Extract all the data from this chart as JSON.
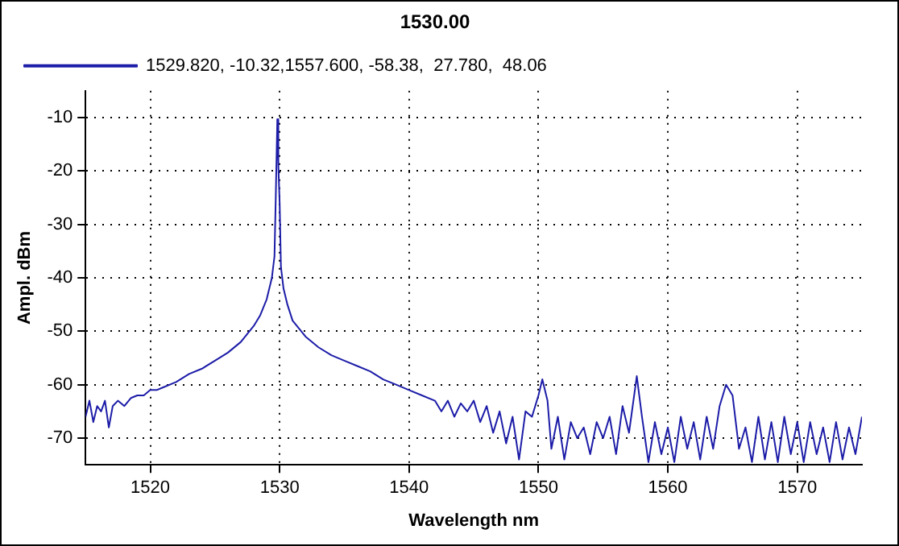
{
  "chart_data": {
    "type": "line",
    "title": "1530.00",
    "xlabel": "Wavelength nm",
    "ylabel": "Ampl. dBm",
    "x": [
      1515,
      1515.3,
      1515.6,
      1515.9,
      1516.2,
      1516.5,
      1516.8,
      1517.1,
      1517.5,
      1518,
      1518.5,
      1519,
      1519.5,
      1520,
      1520.5,
      1521,
      1522,
      1523,
      1524,
      1525,
      1526,
      1527,
      1528,
      1528.5,
      1529,
      1529.4,
      1529.6,
      1529.7,
      1529.82,
      1529.9,
      1530,
      1530.1,
      1530.3,
      1530.6,
      1531,
      1532,
      1533,
      1534,
      1535,
      1536,
      1537,
      1538,
      1539,
      1540,
      1541,
      1542,
      1542.5,
      1543,
      1543.5,
      1544,
      1544.5,
      1545,
      1545.5,
      1546,
      1546.5,
      1547,
      1547.5,
      1548,
      1548.5,
      1549,
      1549.5,
      1550,
      1550.3,
      1550.7,
      1551,
      1551.5,
      1552,
      1552.5,
      1553,
      1553.5,
      1554,
      1554.5,
      1555,
      1555.5,
      1556,
      1556.5,
      1557,
      1557.6,
      1558,
      1558.5,
      1559,
      1559.5,
      1560,
      1560.5,
      1561,
      1561.5,
      1562,
      1562.5,
      1563,
      1563.5,
      1564,
      1564.5,
      1565,
      1565.5,
      1566,
      1566.5,
      1567,
      1567.5,
      1568,
      1568.5,
      1569,
      1569.5,
      1570,
      1570.5,
      1571,
      1571.5,
      1572,
      1572.5,
      1573,
      1573.5,
      1574,
      1574.5,
      1575
    ],
    "series": [
      {
        "name": "1529.820, -10.32,1557.600, -58.38,  27.780,  48.06",
        "color": "#1c1ca8",
        "values": [
          -66,
          -63,
          -67,
          -64,
          -65,
          -63,
          -68,
          -64,
          -63,
          -64,
          -62.5,
          -62,
          -62,
          -61,
          -61,
          -60.5,
          -59.5,
          -58,
          -57,
          -55.5,
          -54,
          -52,
          -49,
          -47,
          -44,
          -40,
          -36,
          -25,
          -10.3,
          -19,
          -26,
          -38,
          -42,
          -45,
          -48,
          -51,
          -53,
          -54.5,
          -55.5,
          -56.5,
          -57.5,
          -59,
          -60,
          -61,
          -62,
          -63,
          -65,
          -63,
          -66,
          -63.5,
          -65,
          -63,
          -67,
          -64,
          -69,
          -65,
          -71,
          -66,
          -74,
          -65,
          -66,
          -62,
          -59,
          -63,
          -72,
          -66,
          -74,
          -67,
          -70,
          -68,
          -73,
          -67,
          -70,
          -66,
          -73,
          -64,
          -69,
          -58.4,
          -66,
          -74.5,
          -67,
          -73,
          -68,
          -74.5,
          -66,
          -72,
          -67,
          -74,
          -66,
          -72,
          -64,
          -60,
          -62,
          -72,
          -68,
          -74.5,
          -66,
          -74,
          -67,
          -74.5,
          -66,
          -73,
          -67,
          -74.5,
          -67,
          -73,
          -68,
          -74.5,
          -67,
          -74,
          -68,
          -73,
          -66
        ]
      }
    ],
    "xlim": [
      1515,
      1575
    ],
    "xticks": [
      1520,
      1530,
      1540,
      1550,
      1560,
      1570
    ],
    "ylim": [
      -75,
      -5
    ],
    "yticks": [
      -10,
      -20,
      -30,
      -40,
      -50,
      -60,
      -70
    ],
    "grid": true,
    "legend": "top",
    "marker": "none",
    "line_style": "solid"
  }
}
